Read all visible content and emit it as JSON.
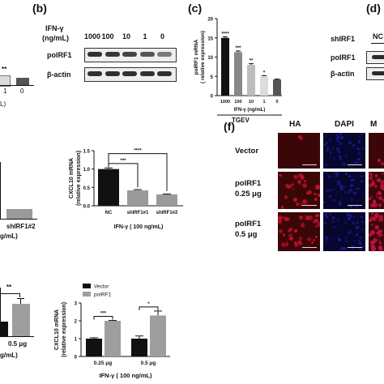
{
  "panels": {
    "b": {
      "letter": "(b)",
      "treatment_label": "IFN-γ",
      "treatment_unit": "(ng/mL)",
      "lanes": [
        "1000",
        "100",
        "10",
        "1",
        "0"
      ],
      "rows": [
        "poIRF1",
        "β-actin"
      ],
      "band_intensity": {
        "poIRF1": [
          0.95,
          0.9,
          0.82,
          0.7,
          0.45
        ],
        "β-actin": [
          0.95,
          0.95,
          0.95,
          0.95,
          0.95
        ]
      }
    },
    "c": {
      "letter": "(c)",
      "ylabel_line1": "poIRF1 mRNA",
      "ylabel_line2": "( relative expression)",
      "xlabel": "IFN-γ (ng/mL)",
      "group_label": "TGEV"
    },
    "d": {
      "letter": "(d)",
      "row_label": "shIRF1",
      "lane_label": "NC",
      "rows": [
        "poIRF1",
        "β-actin"
      ]
    },
    "a_partial": {
      "sig": "**",
      "ticks": [
        "1",
        "0"
      ],
      "unit_fragment": "L)"
    },
    "e_partial": {
      "ticks": [
        "shIRF1#2"
      ],
      "xlabel": "g/mL)"
    },
    "cxcl_sh": {
      "ylabel_line1": "CXCL10 mRNA",
      "ylabel_line2": "(relative expression)",
      "xlabel": "IFN-γ ( 100 ng/mL)",
      "sig": [
        "***",
        "****"
      ]
    },
    "f": {
      "letter": "(f)",
      "columns": [
        "HA",
        "DAPI",
        "M"
      ],
      "rows": [
        {
          "line1": "Vector",
          "line2": ""
        },
        {
          "line1": "poIRF1",
          "line2": "0.25 μg"
        },
        {
          "line1": "poIRF1",
          "line2": "0.5 μg"
        }
      ],
      "colors": {
        "ha": "#c0102a",
        "dapi": "#1a1a9a",
        "merge": "#c01040",
        "bg_red": "#3a0608",
        "bg_blue": "#07072e"
      }
    },
    "g_partial": {
      "sig": "**",
      "ticks": [
        "0.5 μg"
      ],
      "xlabel": "g/mL)"
    },
    "cxcl_ov": {
      "ylabel_line1": "CXCL10 mRNA",
      "ylabel_line2": "(relative expression)",
      "xlabel": "IFN-γ ( 100 ng/mL)",
      "legend": [
        "Vector",
        "poIRF1"
      ],
      "sig": [
        "***",
        "*"
      ],
      "colors": {
        "vector": "#111111",
        "poIRF1": "#9e9e9e"
      }
    }
  },
  "chart_data": [
    {
      "type": "bar",
      "panel": "(c)",
      "categories": [
        "1000",
        "100",
        "10",
        "1",
        "0"
      ],
      "values": [
        15.0,
        11.3,
        8.0,
        5.0,
        4.2
      ],
      "errors": [
        0.3,
        0.3,
        0.3,
        0.2,
        0.1
      ],
      "significance": [
        "****",
        "***",
        "**",
        "*",
        ""
      ],
      "ylim": [
        0,
        20
      ],
      "yticks": [
        0,
        5,
        10,
        15,
        20
      ],
      "ylabel": "poIRF1 mRNA ( relative expression)",
      "xlabel": "IFN-γ (ng/mL)",
      "group": "TGEV",
      "colors": [
        "#111111",
        "#888888",
        "#bdbdbd",
        "#dcdcdc",
        "#555555"
      ]
    },
    {
      "type": "bar",
      "panel": "CXCL10 shIRF1",
      "categories": [
        "NC",
        "shIRF1#1",
        "shIRF1#2"
      ],
      "values": [
        1.0,
        0.42,
        0.31
      ],
      "errors": [
        0.03,
        0.02,
        0.01
      ],
      "ylim": [
        0,
        1.5
      ],
      "yticks": [
        0.0,
        0.5,
        1.0,
        1.5
      ],
      "ylabel": "CXCL10 mRNA (relative expression)",
      "xlabel": "IFN-γ ( 100 ng/mL)",
      "significance_pairs": [
        {
          "from": "NC",
          "to": "shIRF1#1",
          "label": "***"
        },
        {
          "from": "NC",
          "to": "shIRF1#2",
          "label": "****"
        }
      ],
      "colors": [
        "#111111",
        "#9a9a9a",
        "#9a9a9a"
      ]
    },
    {
      "type": "bar",
      "panel": "CXCL10 poIRF1",
      "categories": [
        "0.25 μg",
        "0.5 μg"
      ],
      "series": [
        {
          "name": "Vector",
          "values": [
            1.0,
            1.0
          ],
          "errors": [
            0.05,
            0.15
          ]
        },
        {
          "name": "poIRF1",
          "values": [
            2.0,
            2.3
          ],
          "errors": [
            0.02,
            0.25
          ]
        }
      ],
      "significance": [
        "***",
        "*"
      ],
      "ylim": [
        0,
        3
      ],
      "yticks": [
        0,
        1,
        2,
        3
      ],
      "ylabel": "CXCL10 mRNA (relative expression)",
      "xlabel": "IFN-γ ( 100 ng/mL)",
      "legend": "top-left"
    },
    {
      "type": "bar",
      "panel": "partial-left-top",
      "categories": [
        "",
        "1",
        "0"
      ],
      "values": [
        null,
        0.55,
        0.45
      ],
      "significance": [
        "",
        "**",
        ""
      ],
      "colors": [
        "#dcdcdc",
        "#dcdcdc",
        "#555555"
      ]
    },
    {
      "type": "bar",
      "panel": "partial-left-bottom",
      "categories": [
        "",
        "0.5 μg"
      ],
      "values": [
        0.6,
        3.2
      ],
      "significance": [
        "",
        "**"
      ],
      "colors": [
        "#111111",
        "#9e9e9e"
      ]
    }
  ]
}
